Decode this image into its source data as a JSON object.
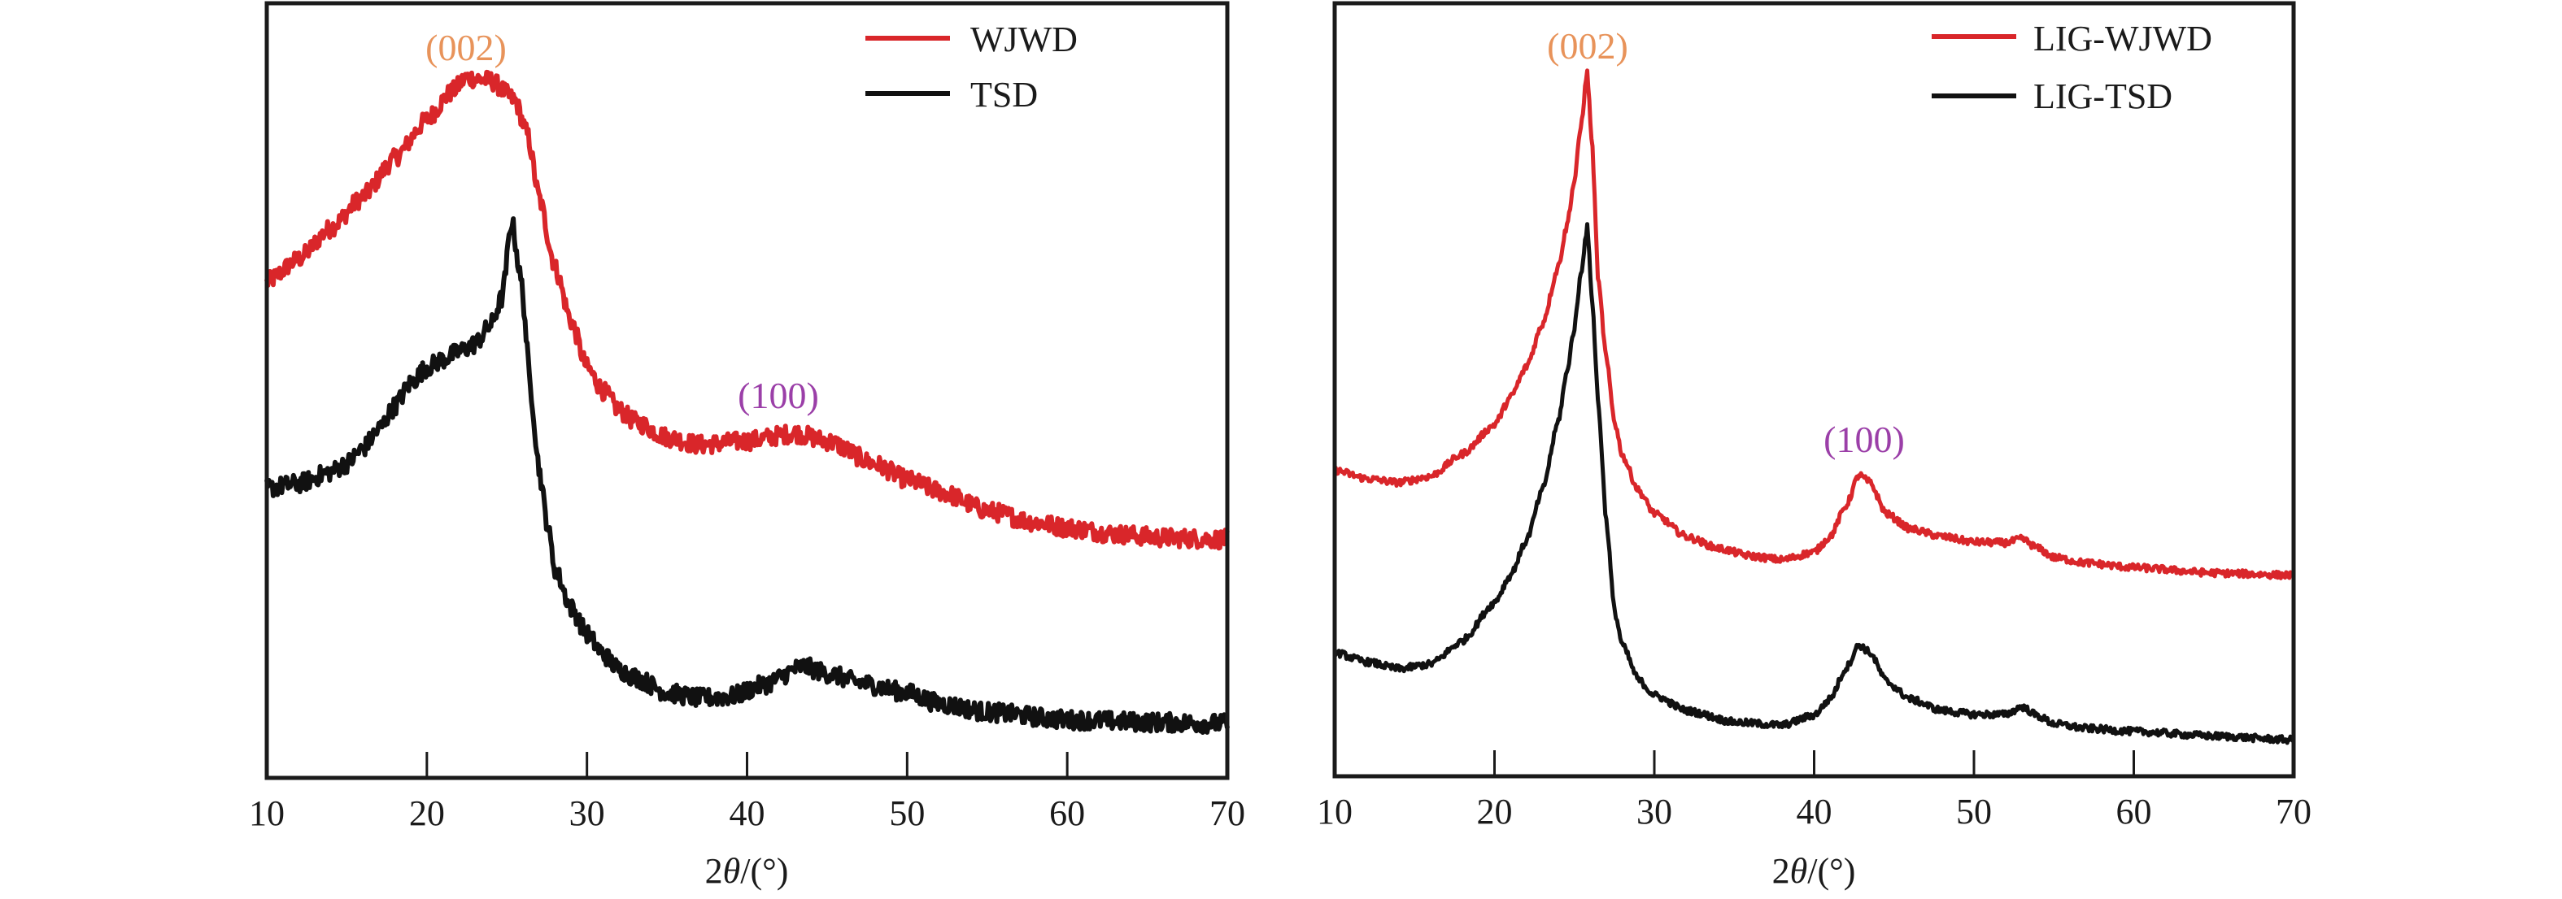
{
  "colors": {
    "red_series": "#d9262a",
    "black_series": "#111111",
    "label_002": "#e8935a",
    "label_100": "#9b3fa8",
    "axis": "#1a1a1a"
  },
  "chart_data": [
    {
      "type": "line",
      "panel": "left",
      "title": "",
      "xlabel_prefix": "2",
      "xlabel_theta": "θ",
      "xlabel_suffix": "/(°)",
      "ylabel": "",
      "xlim": [
        10,
        70
      ],
      "ylim": [
        0,
        100
      ],
      "y_units": "a.u. (no y-axis ticks shown)",
      "x_ticks": [
        10,
        20,
        30,
        40,
        50,
        60,
        70
      ],
      "x_tick_labels": [
        "10",
        "20",
        "30",
        "40",
        "50",
        "60",
        "70"
      ],
      "legend": {
        "placement": "top-right",
        "entries": [
          "WJWD",
          "TSD"
        ]
      },
      "annotations": [
        {
          "text": "(002)",
          "x": 22.5,
          "y": 95,
          "color_key": "label_002"
        },
        {
          "text": "(100)",
          "x": 43.5,
          "y": 74,
          "color_key": "label_100"
        }
      ],
      "series": [
        {
          "name": "WJWD",
          "color_key": "red_series",
          "x": [
            10,
            12,
            14,
            16,
            18,
            20,
            21.5,
            22.5,
            24,
            25.5,
            26.3,
            27,
            28,
            29,
            30,
            31,
            32,
            33,
            35,
            37,
            40,
            43,
            45,
            48,
            50,
            52,
            55,
            58,
            60,
            63,
            66,
            70
          ],
          "y": [
            64,
            67,
            71,
            75,
            80,
            85,
            88.5,
            90.4,
            90,
            87.5,
            83,
            75,
            66,
            59,
            53,
            50,
            47.5,
            46,
            44,
            43,
            43.5,
            44.5,
            43.5,
            40.5,
            38.5,
            37,
            34.5,
            33,
            32.3,
            31.5,
            31,
            30.8
          ]
        },
        {
          "name": "TSD",
          "color_key": "black_series",
          "x": [
            10,
            12,
            14,
            15,
            16,
            17,
            18,
            19,
            20,
            21,
            22,
            23,
            24,
            24.7,
            25.3,
            25.9,
            26.5,
            27,
            27.5,
            28,
            29,
            30,
            31,
            32,
            33,
            35,
            37,
            39,
            41,
            43.5,
            45,
            47,
            50,
            52,
            55,
            60,
            65,
            70
          ],
          "y": [
            37.4,
            38,
            39.5,
            40.6,
            42.5,
            45,
            48,
            51,
            53,
            54,
            55,
            56,
            58.5,
            62,
            72,
            64,
            50,
            40,
            33,
            27,
            22,
            18.6,
            16,
            14,
            13,
            11,
            10.3,
            10.5,
            12,
            14.4,
            13.5,
            12.3,
            11,
            9.6,
            8.5,
            7.5,
            7.2,
            7
          ]
        }
      ]
    },
    {
      "type": "line",
      "panel": "right",
      "title": "",
      "xlabel_prefix": "2",
      "xlabel_theta": "θ",
      "xlabel_suffix": "/(°)",
      "ylabel": "",
      "xlim": [
        10,
        70
      ],
      "ylim": [
        0,
        100
      ],
      "y_units": "a.u. (no y-axis ticks shown)",
      "x_ticks": [
        10,
        20,
        30,
        40,
        50,
        60,
        70
      ],
      "x_tick_labels": [
        "10",
        "20",
        "30",
        "40",
        "50",
        "60",
        "70"
      ],
      "legend": {
        "placement": "top-right",
        "entries": [
          "LIG-WJWD",
          "LIG-TSD"
        ]
      },
      "annotations": [
        {
          "text": "(002)",
          "x": 25.8,
          "y": 96,
          "color_key": "label_002"
        },
        {
          "text": "(100)",
          "x": 43,
          "y": 72,
          "color_key": "label_100"
        }
      ],
      "series": [
        {
          "name": "LIG-WJWD",
          "color_key": "red_series",
          "x": [
            10,
            12,
            14,
            16,
            18,
            20,
            21,
            22,
            23,
            24,
            24.5,
            25,
            25.4,
            25.8,
            26.1,
            26.5,
            27,
            27.5,
            28,
            29,
            30,
            32,
            34,
            36,
            38,
            40,
            41,
            42,
            42.8,
            43.5,
            44.5,
            46,
            48,
            50,
            52,
            53,
            54,
            55,
            57,
            60,
            65,
            70
          ],
          "y": [
            39.6,
            38.5,
            38,
            38.8,
            41.7,
            45.5,
            49,
            53,
            58.5,
            66,
            71,
            77,
            84,
            91,
            82,
            63.9,
            54,
            46,
            41.5,
            37,
            34,
            31,
            29.5,
            28.5,
            28,
            29,
            31,
            35,
            39,
            38,
            34,
            32,
            31,
            30.3,
            30.2,
            30.7,
            29.5,
            28.3,
            27.6,
            27,
            26.3,
            26
          ]
        },
        {
          "name": "LIG-TSD",
          "color_key": "black_series",
          "x": [
            10,
            12,
            14,
            16,
            18,
            20,
            21,
            22,
            23,
            24,
            24.5,
            25,
            25.4,
            25.8,
            26.1,
            26.5,
            27,
            27.5,
            28,
            29,
            30,
            32,
            35,
            38,
            40,
            41,
            42,
            42.8,
            43.5,
            44.5,
            46,
            48,
            50,
            52,
            53,
            54,
            55,
            57,
            60,
            65,
            70
          ],
          "y": [
            16,
            14.8,
            13.9,
            14.5,
            17.5,
            22.5,
            26,
            30.5,
            37,
            46,
            52,
            58,
            65,
            71,
            62,
            48,
            33,
            21.5,
            17,
            12.5,
            10.5,
            8.5,
            7,
            6.6,
            7.9,
            10,
            14,
            17,
            16,
            12.3,
            10,
            8.5,
            8,
            8,
            9,
            7.8,
            6.8,
            6.2,
            5.8,
            5.2,
            4.7
          ]
        }
      ]
    }
  ]
}
